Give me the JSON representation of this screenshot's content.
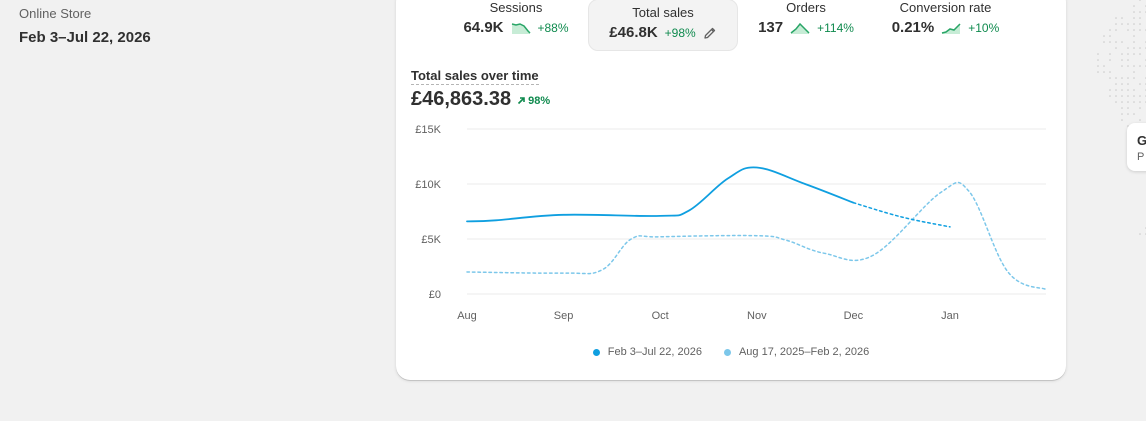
{
  "left": {
    "store": "Online Store",
    "date_range": "Feb 3–Jul 22, 2026"
  },
  "metrics": [
    {
      "label": "Sessions",
      "value": "64.9K",
      "change": "+88%",
      "spark": "area-icon"
    },
    {
      "label": "Total sales",
      "value": "£46.8K",
      "change": "+98%",
      "spark": "pencil-icon",
      "active": true
    },
    {
      "label": "Orders",
      "value": "137",
      "change": "+114%",
      "spark": "area-icon"
    },
    {
      "label": "Conversion rate",
      "value": "0.21%",
      "change": "+10%",
      "spark": "area-icon"
    }
  ],
  "chart": {
    "title": "Total sales over time",
    "total": "£46,863.38",
    "total_change": "98%"
  },
  "chart_data": {
    "type": "line",
    "categories": [
      "Aug",
      "Sep",
      "Oct",
      "Nov",
      "Dec",
      "Jan"
    ],
    "y_ticks": [
      "£0",
      "£5K",
      "£10K",
      "£15K"
    ],
    "ylim": [
      0,
      15000
    ],
    "grid": true,
    "legend_position": "bottom",
    "series": [
      {
        "name": "Feb 3–Jul 22, 2026",
        "color": "#0f9fe0",
        "style": "solid-then-dotted",
        "x": [
          0,
          0.3,
          1,
          2,
          2.3,
          2.7,
          3,
          3.5,
          4,
          4.5,
          5
        ],
        "values": [
          6600,
          6700,
          7200,
          7100,
          7600,
          10500,
          11500,
          10000,
          8300,
          7000,
          6100
        ]
      },
      {
        "name": "Aug 17, 2025–Feb 2, 2026",
        "color": "#7cc7ea",
        "style": "dotted",
        "x": [
          0,
          1,
          1.4,
          1.7,
          2,
          3,
          3.3,
          3.7,
          4.2,
          4.9,
          5.2,
          5.6,
          6
        ],
        "values": [
          2000,
          1900,
          2200,
          5000,
          5200,
          5300,
          4900,
          3700,
          3500,
          9200,
          9300,
          2000,
          400
        ]
      }
    ]
  }
}
